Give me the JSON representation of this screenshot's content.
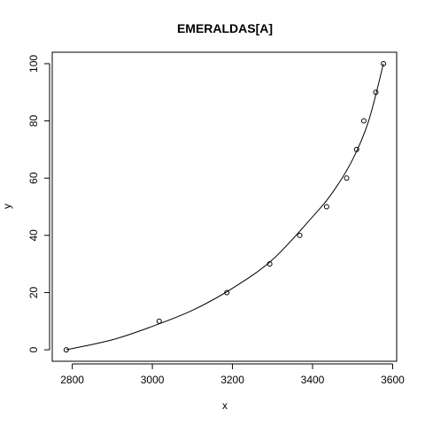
{
  "chart_data": {
    "type": "scatter",
    "title": "EMERALDAS[A]",
    "xlabel": "x",
    "ylabel": "y",
    "xlim": [
      2750,
      3610
    ],
    "ylim": [
      -4,
      104
    ],
    "x_ticks": [
      2800,
      3000,
      3200,
      3400,
      3600
    ],
    "y_ticks": [
      0,
      20,
      40,
      60,
      80,
      100
    ],
    "grid": false,
    "legend": "none",
    "points": [
      {
        "x": 2785,
        "y": 0
      },
      {
        "x": 3017,
        "y": 10
      },
      {
        "x": 3186,
        "y": 20
      },
      {
        "x": 3293,
        "y": 30
      },
      {
        "x": 3368,
        "y": 40
      },
      {
        "x": 3435,
        "y": 50
      },
      {
        "x": 3485,
        "y": 60
      },
      {
        "x": 3510,
        "y": 70
      },
      {
        "x": 3528,
        "y": 80
      },
      {
        "x": 3558,
        "y": 90
      },
      {
        "x": 3577,
        "y": 100
      }
    ],
    "fitted_curve": [
      {
        "x": 2785,
        "y": 0
      },
      {
        "x": 2900,
        "y": 3.5
      },
      {
        "x": 3000,
        "y": 8.2
      },
      {
        "x": 3100,
        "y": 13.8
      },
      {
        "x": 3200,
        "y": 21.5
      },
      {
        "x": 3300,
        "y": 31.5
      },
      {
        "x": 3400,
        "y": 46.5
      },
      {
        "x": 3450,
        "y": 55
      },
      {
        "x": 3500,
        "y": 66.5
      },
      {
        "x": 3540,
        "y": 80
      },
      {
        "x": 3577,
        "y": 100
      }
    ]
  }
}
